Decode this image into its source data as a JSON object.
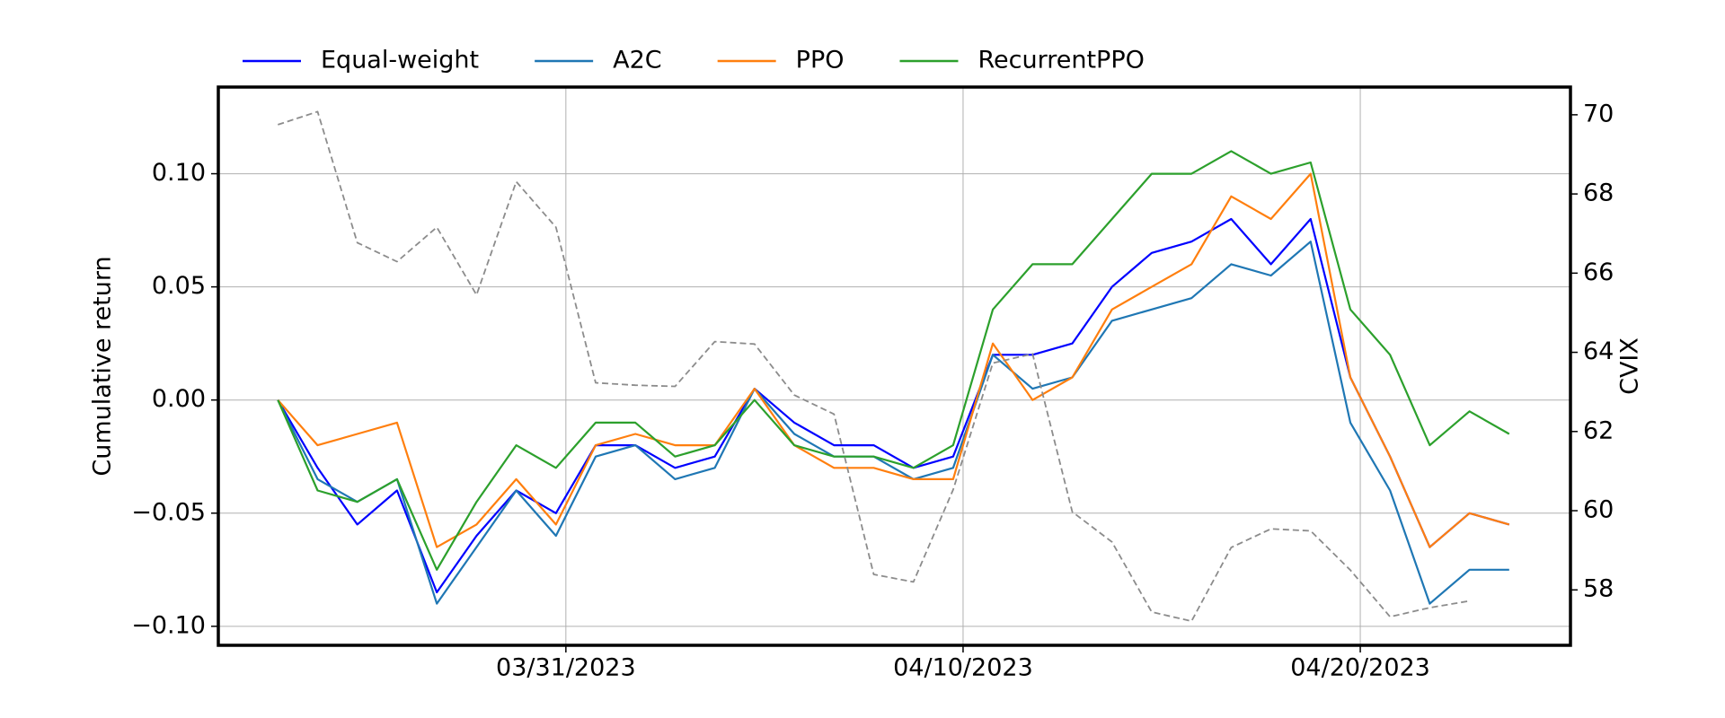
{
  "chart_data": {
    "type": "line",
    "y_label": "Cumulative return",
    "y2_label": "CVIX",
    "x": [
      "2023-03-23T18:00",
      "2023-03-24T18:00",
      "2023-03-25T18:00",
      "2023-03-26T18:00",
      "2023-03-27T18:00",
      "2023-03-28T18:00",
      "2023-03-29T18:00",
      "2023-03-30T18:00",
      "2023-03-31T18:00",
      "2023-04-01T18:00",
      "2023-04-02T18:00",
      "2023-04-03T18:00",
      "2023-04-04T18:00",
      "2023-04-05T18:00",
      "2023-04-06T18:00",
      "2023-04-07T18:00",
      "2023-04-08T18:00",
      "2023-04-09T18:00",
      "2023-04-10T18:00",
      "2023-04-11T18:00",
      "2023-04-12T18:00",
      "2023-04-13T18:00",
      "2023-04-14T18:00",
      "2023-04-15T18:00",
      "2023-04-16T18:00",
      "2023-04-17T18:00",
      "2023-04-18T18:00",
      "2023-04-19T18:00",
      "2023-04-20T18:00",
      "2023-04-21T18:00",
      "2023-04-22T18:00",
      "2023-04-23T18:00"
    ],
    "series": [
      {
        "name": "Equal-weight",
        "color": "#0000ff",
        "values": [
          0,
          -0.03,
          -0.055,
          -0.04,
          -0.085,
          -0.06,
          -0.04,
          -0.05,
          -0.02,
          -0.02,
          -0.03,
          -0.025,
          0.005,
          -0.01,
          -0.02,
          -0.02,
          -0.03,
          -0.025,
          0.02,
          0.02,
          0.025,
          0.05,
          0.065,
          0.07,
          0.08,
          0.06,
          0.08,
          0.01,
          -0.025,
          -0.065,
          -0.05,
          -0.055
        ]
      },
      {
        "name": "A2C",
        "color": "#1f77b4",
        "values": [
          0,
          -0.035,
          -0.045,
          -0.035,
          -0.09,
          -0.065,
          -0.04,
          -0.06,
          -0.025,
          -0.02,
          -0.035,
          -0.03,
          0.005,
          -0.015,
          -0.025,
          -0.025,
          -0.035,
          -0.03,
          0.02,
          0.005,
          0.01,
          0.035,
          0.04,
          0.045,
          0.06,
          0.055,
          0.07,
          -0.01,
          -0.04,
          -0.09,
          -0.075,
          -0.075
        ]
      },
      {
        "name": "PPO",
        "color": "#ff7f0e",
        "values": [
          0,
          -0.02,
          -0.015,
          -0.01,
          -0.065,
          -0.055,
          -0.035,
          -0.055,
          -0.02,
          -0.015,
          -0.02,
          -0.02,
          0.005,
          -0.02,
          -0.03,
          -0.03,
          -0.035,
          -0.035,
          0.025,
          0.0,
          0.01,
          0.04,
          0.05,
          0.06,
          0.09,
          0.08,
          0.1,
          0.01,
          -0.025,
          -0.065,
          -0.05,
          -0.055
        ]
      },
      {
        "name": "RecurrentPPO",
        "color": "#2ca02c",
        "values": [
          0,
          -0.04,
          -0.045,
          -0.035,
          -0.075,
          -0.045,
          -0.02,
          -0.03,
          -0.01,
          -0.01,
          -0.025,
          -0.02,
          0.0,
          -0.02,
          -0.025,
          -0.025,
          -0.03,
          -0.02,
          0.04,
          0.06,
          0.06,
          0.08,
          0.1,
          0.1,
          0.11,
          0.1,
          0.105,
          0.04,
          0.02,
          -0.02,
          -0.005,
          -0.015
        ]
      },
      {
        "axis": "y2",
        "color": "#8c8c8c",
        "dashed": true,
        "values": [
          69.75,
          70.08,
          66.77,
          66.29,
          67.16,
          65.45,
          68.31,
          67.16,
          63.23,
          63.17,
          63.14,
          64.27,
          64.21,
          62.92,
          62.44,
          58.39,
          58.2,
          60.53,
          63.73,
          63.96,
          59.97,
          59.21,
          57.44,
          57.21,
          59.07,
          59.54,
          59.49,
          58.5,
          57.32,
          57.55,
          57.72,
          null
        ]
      }
    ],
    "xlim": [
      "2023-03-22T06:00",
      "2023-04-25T07:00"
    ],
    "xticks": [
      {
        "value": "2023-03-31",
        "label": "03/31/2023"
      },
      {
        "value": "2023-04-10",
        "label": "04/10/2023"
      },
      {
        "value": "2023-04-20",
        "label": "04/20/2023"
      }
    ],
    "ylim": [
      -0.1084,
      0.1383
    ],
    "yticks": [
      {
        "value": -0.1,
        "label": "−0.10"
      },
      {
        "value": -0.05,
        "label": "−0.05"
      },
      {
        "value": 0,
        "label": "0.00"
      },
      {
        "value": 0.05,
        "label": "0.05"
      },
      {
        "value": 0.1,
        "label": "0.10"
      }
    ],
    "y2lim": [
      56.6,
      70.7
    ],
    "y2ticks": [
      58,
      60,
      62,
      64,
      66,
      68,
      70
    ],
    "grid": true,
    "legend": "top-left"
  }
}
